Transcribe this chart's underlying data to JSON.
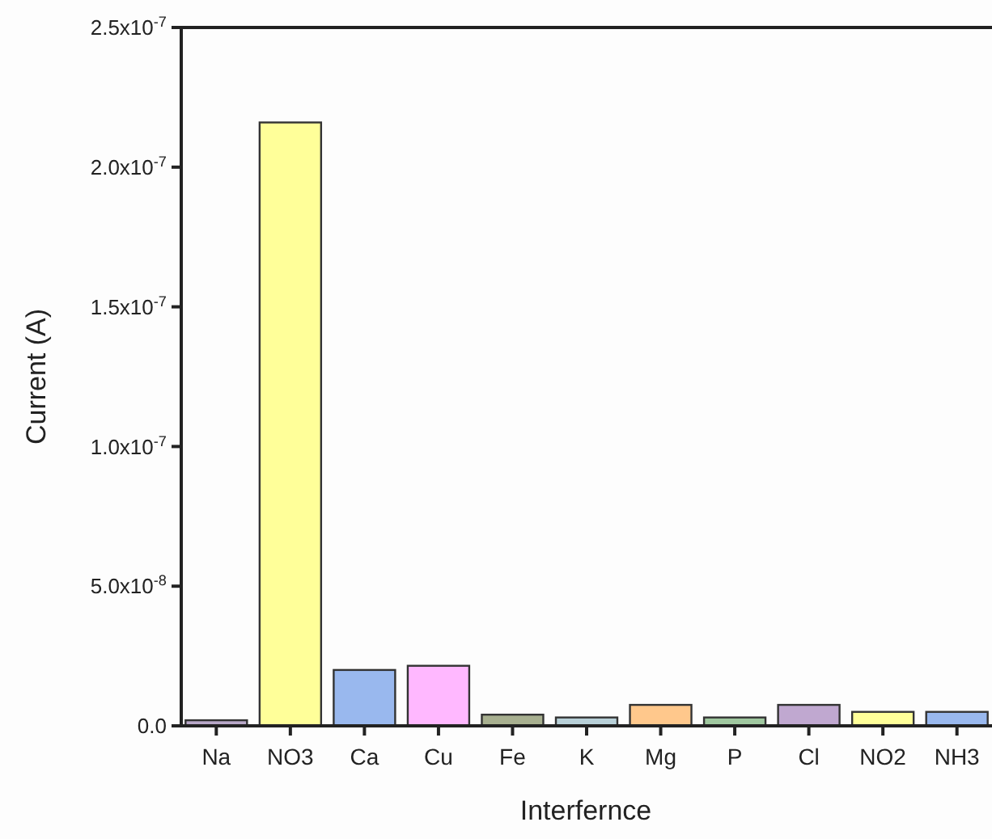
{
  "chart_data": {
    "type": "bar",
    "xlabel": "Interfernce",
    "ylabel": "Current (A)",
    "categories": [
      "Na",
      "NO3",
      "Ca",
      "Cu",
      "Fe",
      "K",
      "Mg",
      "P",
      "Cl",
      "NO2",
      "NH3"
    ],
    "values": [
      2e-09,
      2.16e-07,
      2e-08,
      2.15e-08,
      4e-09,
      3e-09,
      7.5e-09,
      3e-09,
      7.5e-09,
      5e-09,
      5e-09
    ],
    "colors": [
      "#b8a8c8",
      "#ffff99",
      "#99b8ee",
      "#ffb8ff",
      "#a8b090",
      "#b8d0d8",
      "#ffc88c",
      "#a0c8a0",
      "#c0a8d0",
      "#ffff99",
      "#99b8ee"
    ],
    "ylim": [
      0,
      2.5e-07
    ],
    "yticks": [
      {
        "value": 0,
        "label": "0.0"
      },
      {
        "value": 5e-08,
        "label": "5.0x10$^{-8}$"
      },
      {
        "value": 1e-07,
        "label": "1.0x10$^{-7}$"
      },
      {
        "value": 1.5e-07,
        "label": "1.5x10$^{-7}$"
      },
      {
        "value": 2e-07,
        "label": "2.0x10$^{-7}$"
      },
      {
        "value": 2.5e-07,
        "label": "2.5x10$^{-7}$"
      }
    ],
    "grid": false
  }
}
